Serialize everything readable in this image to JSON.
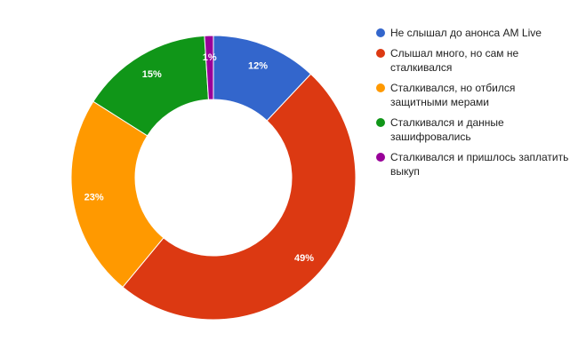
{
  "chart_data": {
    "type": "pie",
    "donut": true,
    "categories": [
      "Не слышал до анонса AM Live",
      "Слышал много, но сам не сталкивался",
      "Сталкивался, но отбился защитными мерами",
      "Сталкивался и данные зашифровались",
      "Сталкивался и пришлось заплатить выкуп"
    ],
    "values": [
      12,
      49,
      23,
      15,
      1
    ],
    "labels": [
      "12%",
      "49%",
      "23%",
      "15%",
      "1%"
    ],
    "colors": [
      "#3366cc",
      "#dc3912",
      "#ff9900",
      "#109618",
      "#990099"
    ],
    "legend_position": "right",
    "title": ""
  }
}
